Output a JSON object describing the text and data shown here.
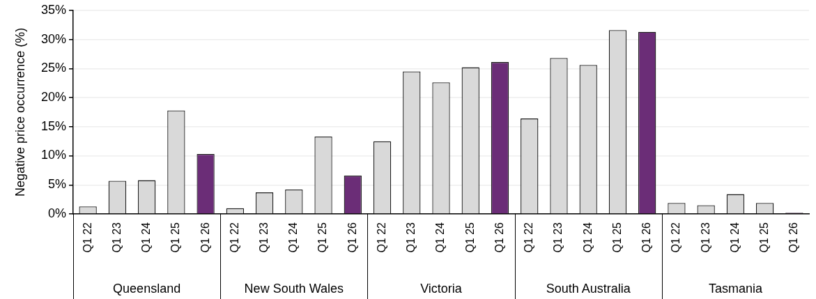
{
  "chart_data": {
    "type": "bar",
    "ylabel": "Negative price occurrence (%)",
    "categories": [
      "Q1 22",
      "Q1 23",
      "Q1 24",
      "Q1 25",
      "Q1 26",
      "Q1 22",
      "Q1 23",
      "Q1 24",
      "Q1 25",
      "Q1 26",
      "Q1 22",
      "Q1 23",
      "Q1 24",
      "Q1 25",
      "Q1 26",
      "Q1 22",
      "Q1 23",
      "Q1 24",
      "Q1 25",
      "Q1 26",
      "Q1 22",
      "Q1 23",
      "Q1 24",
      "Q1 25",
      "Q1 26"
    ],
    "values": [
      1.3,
      5.7,
      5.8,
      17.8,
      10.3,
      1.0,
      3.7,
      4.2,
      13.3,
      6.6,
      12.5,
      24.5,
      22.6,
      25.2,
      26.1,
      16.4,
      26.8,
      25.6,
      31.6,
      31.3,
      1.9,
      1.5,
      3.4,
      1.9,
      0.2
    ],
    "colors": [
      "#d9d9d9",
      "#d9d9d9",
      "#d9d9d9",
      "#d9d9d9",
      "#6b2d77",
      "#d9d9d9",
      "#d9d9d9",
      "#d9d9d9",
      "#d9d9d9",
      "#6b2d77",
      "#d9d9d9",
      "#d9d9d9",
      "#d9d9d9",
      "#d9d9d9",
      "#6b2d77",
      "#d9d9d9",
      "#d9d9d9",
      "#d9d9d9",
      "#d9d9d9",
      "#6b2d77",
      "#d9d9d9",
      "#d9d9d9",
      "#d9d9d9",
      "#d9d9d9",
      "#6b2d77"
    ],
    "ylim": [
      0,
      35
    ],
    "yticks": [
      {
        "value": 0,
        "label": "0%"
      },
      {
        "value": 5,
        "label": "5%"
      },
      {
        "value": 10,
        "label": "10%"
      },
      {
        "value": 15,
        "label": "15%"
      },
      {
        "value": 20,
        "label": "20%"
      },
      {
        "value": 25,
        "label": "25%"
      },
      {
        "value": 30,
        "label": "30%"
      },
      {
        "value": 35,
        "label": "35%"
      }
    ],
    "grid": "y",
    "legend": false,
    "annotations": [
      "Queensland",
      "New South Wales",
      "Victoria",
      "South Australia",
      "Tasmania"
    ]
  }
}
